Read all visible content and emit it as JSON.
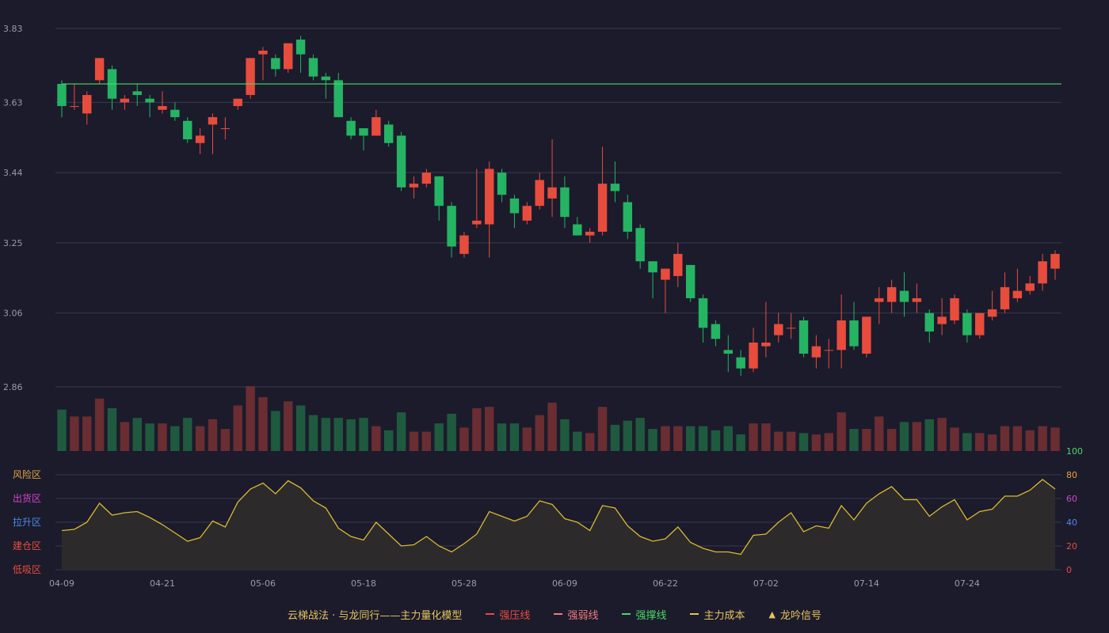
{
  "colors": {
    "background": "#1b1b2c",
    "up": "#e84c3d",
    "down": "#25b463",
    "grid": "#3a3a4e",
    "axis_text": "#9a9aaa",
    "support_line": "#4cd964",
    "oscillator_line": "#d9b92e",
    "oscillator_fill": "#2e2b2c"
  },
  "chart_data": [
    {
      "type": "candlestick",
      "ylim": [
        2.86,
        3.83
      ],
      "y_ticks": [
        "3.83",
        "3.63",
        "3.44",
        "3.25",
        "3.06",
        "2.86"
      ],
      "x_ticks": [
        {
          "index": 0,
          "label": "04-09"
        },
        {
          "index": 8,
          "label": "04-21"
        },
        {
          "index": 16,
          "label": "05-06"
        },
        {
          "index": 24,
          "label": "05-18"
        },
        {
          "index": 32,
          "label": "05-28"
        },
        {
          "index": 40,
          "label": "06-09"
        },
        {
          "index": 48,
          "label": "06-22"
        },
        {
          "index": 56,
          "label": "07-02"
        },
        {
          "index": 64,
          "label": "07-14"
        },
        {
          "index": 72,
          "label": "07-24"
        }
      ],
      "support_level": 3.68,
      "candles": [
        [
          3.68,
          3.62,
          3.69,
          3.59
        ],
        [
          3.62,
          3.62,
          3.68,
          3.61
        ],
        [
          3.6,
          3.65,
          3.66,
          3.57
        ],
        [
          3.69,
          3.75,
          3.75,
          3.68
        ],
        [
          3.72,
          3.64,
          3.73,
          3.61
        ],
        [
          3.63,
          3.64,
          3.65,
          3.61
        ],
        [
          3.66,
          3.65,
          3.68,
          3.62
        ],
        [
          3.64,
          3.63,
          3.65,
          3.59
        ],
        [
          3.61,
          3.62,
          3.66,
          3.6
        ],
        [
          3.61,
          3.59,
          3.63,
          3.58
        ],
        [
          3.58,
          3.53,
          3.59,
          3.52
        ],
        [
          3.52,
          3.54,
          3.56,
          3.49
        ],
        [
          3.57,
          3.59,
          3.6,
          3.49
        ],
        [
          3.56,
          3.56,
          3.59,
          3.53
        ],
        [
          3.62,
          3.64,
          3.64,
          3.61
        ],
        [
          3.65,
          3.75,
          3.75,
          3.64
        ],
        [
          3.76,
          3.77,
          3.78,
          3.69
        ],
        [
          3.75,
          3.72,
          3.76,
          3.7
        ],
        [
          3.72,
          3.79,
          3.79,
          3.71
        ],
        [
          3.8,
          3.76,
          3.81,
          3.71
        ],
        [
          3.75,
          3.7,
          3.76,
          3.69
        ],
        [
          3.7,
          3.69,
          3.71,
          3.64
        ],
        [
          3.69,
          3.59,
          3.71,
          3.59
        ],
        [
          3.58,
          3.54,
          3.59,
          3.53
        ],
        [
          3.56,
          3.54,
          3.56,
          3.5
        ],
        [
          3.54,
          3.59,
          3.61,
          3.54
        ],
        [
          3.57,
          3.52,
          3.58,
          3.51
        ],
        [
          3.54,
          3.4,
          3.55,
          3.39
        ],
        [
          3.4,
          3.41,
          3.43,
          3.37
        ],
        [
          3.41,
          3.44,
          3.45,
          3.4
        ],
        [
          3.43,
          3.35,
          3.43,
          3.31
        ],
        [
          3.35,
          3.24,
          3.36,
          3.21
        ],
        [
          3.22,
          3.27,
          3.28,
          3.21
        ],
        [
          3.3,
          3.31,
          3.45,
          3.29
        ],
        [
          3.3,
          3.45,
          3.47,
          3.21
        ],
        [
          3.44,
          3.38,
          3.45,
          3.36
        ],
        [
          3.37,
          3.33,
          3.38,
          3.29
        ],
        [
          3.31,
          3.35,
          3.36,
          3.3
        ],
        [
          3.35,
          3.42,
          3.44,
          3.34
        ],
        [
          3.37,
          3.4,
          3.53,
          3.32
        ],
        [
          3.4,
          3.32,
          3.43,
          3.29
        ],
        [
          3.3,
          3.27,
          3.32,
          3.27
        ],
        [
          3.27,
          3.28,
          3.29,
          3.25
        ],
        [
          3.28,
          3.41,
          3.51,
          3.27
        ],
        [
          3.41,
          3.39,
          3.47,
          3.36
        ],
        [
          3.36,
          3.28,
          3.38,
          3.26
        ],
        [
          3.29,
          3.2,
          3.3,
          3.18
        ],
        [
          3.2,
          3.17,
          3.2,
          3.1
        ],
        [
          3.15,
          3.18,
          3.18,
          3.06
        ],
        [
          3.16,
          3.22,
          3.25,
          3.13
        ],
        [
          3.19,
          3.1,
          3.19,
          3.09
        ],
        [
          3.1,
          3.02,
          3.11,
          2.98
        ],
        [
          3.03,
          2.99,
          3.04,
          2.97
        ],
        [
          2.96,
          2.95,
          3.0,
          2.9
        ],
        [
          2.94,
          2.91,
          2.96,
          2.89
        ],
        [
          2.91,
          2.98,
          3.02,
          2.9
        ],
        [
          2.97,
          2.98,
          3.09,
          2.94
        ],
        [
          3.0,
          3.03,
          3.06,
          2.98
        ],
        [
          3.02,
          3.02,
          3.06,
          2.99
        ],
        [
          3.04,
          2.95,
          3.05,
          2.94
        ],
        [
          2.94,
          2.97,
          3.0,
          2.91
        ],
        [
          2.96,
          2.96,
          2.99,
          2.91
        ],
        [
          2.96,
          3.04,
          3.11,
          2.91
        ],
        [
          3.04,
          2.97,
          3.09,
          2.96
        ],
        [
          2.95,
          3.05,
          3.05,
          2.94
        ],
        [
          3.09,
          3.1,
          3.13,
          3.03
        ],
        [
          3.09,
          3.13,
          3.15,
          3.06
        ],
        [
          3.12,
          3.09,
          3.17,
          3.05
        ],
        [
          3.09,
          3.1,
          3.14,
          3.06
        ],
        [
          3.06,
          3.01,
          3.07,
          2.98
        ],
        [
          3.03,
          3.05,
          3.1,
          3.0
        ],
        [
          3.04,
          3.1,
          3.11,
          3.03
        ],
        [
          3.06,
          3.0,
          3.07,
          2.98
        ],
        [
          3.0,
          3.06,
          3.06,
          2.99
        ],
        [
          3.05,
          3.07,
          3.12,
          3.04
        ],
        [
          3.07,
          3.13,
          3.17,
          3.06
        ],
        [
          3.1,
          3.12,
          3.18,
          3.09
        ],
        [
          3.12,
          3.14,
          3.16,
          3.11
        ],
        [
          3.14,
          3.2,
          3.22,
          3.12
        ],
        [
          3.18,
          3.22,
          3.23,
          3.15
        ]
      ],
      "volume": [
        30,
        25,
        25,
        38,
        31,
        21,
        24,
        20,
        20,
        18,
        24,
        18,
        23,
        16,
        33,
        47,
        39,
        29,
        36,
        33,
        26,
        24,
        24,
        23,
        24,
        18,
        15,
        28,
        14,
        14,
        20,
        27,
        17,
        31,
        32,
        20,
        20,
        17,
        26,
        35,
        23,
        14,
        13,
        32,
        19,
        22,
        24,
        16,
        18,
        18,
        18,
        18,
        15,
        18,
        12,
        20,
        20,
        14,
        14,
        13,
        12,
        13,
        28,
        16,
        16,
        25,
        16,
        21,
        21,
        23,
        24,
        17,
        13,
        13,
        12,
        18,
        18,
        15,
        18,
        17
      ]
    },
    {
      "type": "area",
      "ylim": [
        0,
        100
      ],
      "right_ticks": [
        "100",
        "80",
        "60",
        "40",
        "20",
        "0"
      ],
      "zones": [
        {
          "label": "风险区",
          "level": 80,
          "color": "#e3a43a"
        },
        {
          "label": "出货区",
          "level": 60,
          "color": "#d743c9"
        },
        {
          "label": "拉升区",
          "level": 40,
          "color": "#4d88e6"
        },
        {
          "label": "建仓区",
          "level": 20,
          "color": "#e84c3d"
        },
        {
          "label": "低吸区",
          "level": 0,
          "color": "#e84c3d"
        }
      ],
      "values": [
        33,
        34,
        40,
        56,
        46,
        48,
        49,
        44,
        38,
        31,
        24,
        27,
        41,
        36,
        57,
        68,
        73,
        64,
        75,
        69,
        58,
        52,
        35,
        28,
        25,
        40,
        30,
        20,
        21,
        28,
        20,
        15,
        22,
        30,
        49,
        45,
        41,
        45,
        58,
        55,
        43,
        40,
        33,
        54,
        52,
        37,
        28,
        24,
        26,
        36,
        23,
        18,
        15,
        15,
        13,
        29,
        30,
        40,
        48,
        32,
        37,
        35,
        54,
        42,
        56,
        64,
        70,
        59,
        59,
        45,
        53,
        59,
        42,
        49,
        51,
        62,
        62,
        67,
        76,
        68
      ]
    }
  ],
  "legend": {
    "title": "云梯战法 · 与龙同行——主力量化模型",
    "items": [
      {
        "label": "强压线",
        "color": "#e84c3d",
        "style": "solid"
      },
      {
        "label": "强弱线",
        "color": "#f27b7b",
        "style": "dash"
      },
      {
        "label": "强撑线",
        "color": "#4cd964",
        "style": "solid"
      },
      {
        "label": "主力成本",
        "color": "#e6c35c",
        "style": "dash"
      },
      {
        "label": "龙吟信号",
        "color": "#e6c35c",
        "style": "triangle"
      }
    ]
  }
}
